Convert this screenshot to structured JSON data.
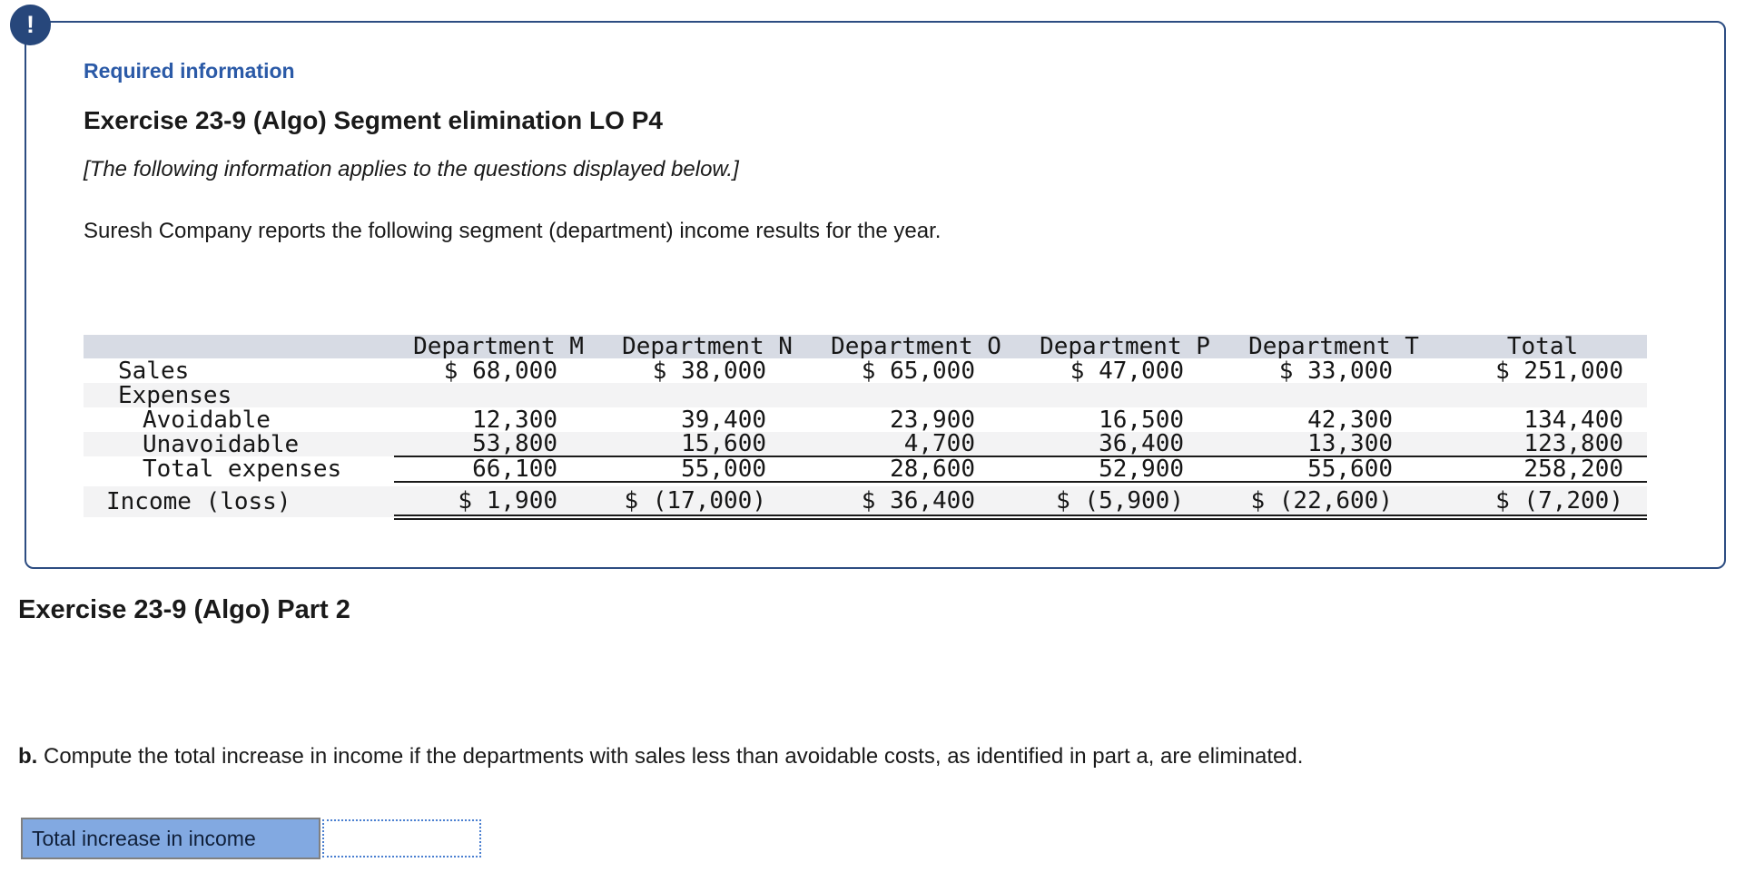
{
  "alert": {
    "glyph": "!",
    "color": "#27477b"
  },
  "required_info": {
    "label": "Required information",
    "title": "Exercise 23-9 (Algo) Segment elimination LO P4",
    "note": "[The following information applies to the questions displayed below.]",
    "intro": "Suresh Company reports the following segment (department) income results for the year."
  },
  "segment_table": {
    "columns": [
      "",
      "Department M",
      "Department N",
      "Department O",
      "Department P",
      "Department T",
      "Total"
    ],
    "rows": [
      {
        "label": "Sales",
        "indent": "lvl1",
        "shaded": false,
        "rule": null,
        "gap_below": false,
        "tall": false,
        "values": [
          "$ 68,000",
          "$ 38,000",
          "$ 65,000",
          "$ 47,000",
          "$ 33,000",
          "$ 251,000"
        ]
      },
      {
        "label": "Expenses",
        "indent": "lvl1",
        "shaded": true,
        "rule": null,
        "gap_below": false,
        "tall": false,
        "values": [
          "",
          "",
          "",
          "",
          "",
          ""
        ]
      },
      {
        "label": "Avoidable",
        "indent": "lvl2",
        "shaded": false,
        "rule": null,
        "gap_below": false,
        "tall": false,
        "values": [
          "12,300",
          "39,400",
          "23,900",
          "16,500",
          "42,300",
          "134,400"
        ]
      },
      {
        "label": "Unavoidable",
        "indent": "lvl2",
        "shaded": true,
        "rule": "single",
        "gap_below": false,
        "tall": false,
        "values": [
          "53,800",
          "15,600",
          "4,700",
          "36,400",
          "13,300",
          "123,800"
        ]
      },
      {
        "label": "Total expenses",
        "indent": "lvl2",
        "shaded": false,
        "rule": "single",
        "gap_below": true,
        "tall": false,
        "values": [
          "66,100",
          "55,000",
          "28,600",
          "52,900",
          "55,600",
          "258,200"
        ]
      },
      {
        "label": "Income (loss)",
        "indent": "lvl0",
        "shaded": true,
        "rule": "double",
        "gap_below": false,
        "tall": true,
        "values": [
          "$ 1,900",
          "$ (17,000)",
          "$ 36,400",
          "$ (5,900)",
          "$ (22,600)",
          "$ (7,200)"
        ]
      }
    ]
  },
  "part2": {
    "heading": "Exercise 23-9 (Algo) Part 2",
    "question_prefix": "b.",
    "question_text": " Compute the total increase in income if the departments with sales less than avoidable costs, as identified in part a, are eliminated."
  },
  "answer": {
    "label": "Total increase in income",
    "value": ""
  },
  "colors": {
    "panel_border": "#2d4d82",
    "alert_badge": "#27477b",
    "required_label_blue": "#2b5aa7",
    "table_header_bg": "#d7dbe4",
    "zebra_bg": "#f3f3f4",
    "answer_label_bg": "#82a9e1",
    "input_border_blue": "#4a7fd0"
  }
}
